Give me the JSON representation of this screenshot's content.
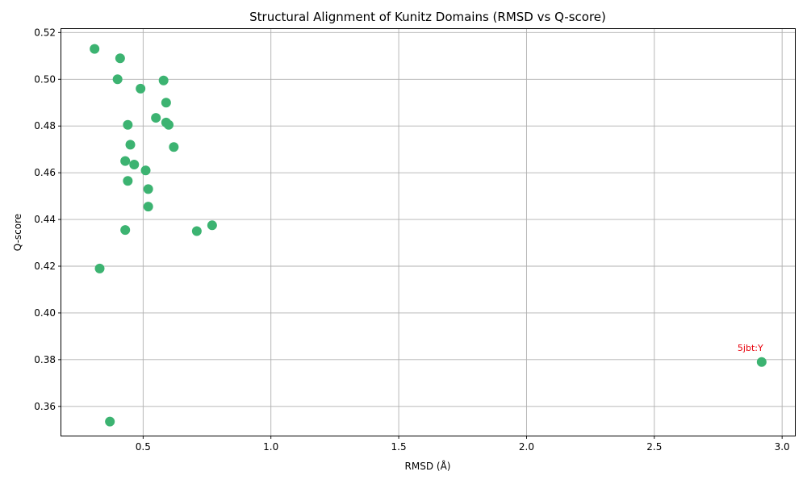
{
  "chart_data": {
    "type": "scatter",
    "title": "Structural Alignment of Kunitz Domains (RMSD vs Q-score)",
    "xlabel": "RMSD (Å)",
    "ylabel": "Q-score",
    "xlim": [
      0.18,
      3.05
    ],
    "ylim": [
      0.3475,
      0.5215
    ],
    "xticks": [
      0.5,
      1.0,
      1.5,
      2.0,
      2.5,
      3.0
    ],
    "xtick_labels": [
      "0.5",
      "1.0",
      "1.5",
      "2.0",
      "2.5",
      "3.0"
    ],
    "yticks": [
      0.36,
      0.38,
      0.4,
      0.42,
      0.44,
      0.46,
      0.48,
      0.5,
      0.52
    ],
    "ytick_labels": [
      "0.36",
      "0.38",
      "0.40",
      "0.42",
      "0.44",
      "0.46",
      "0.48",
      "0.50",
      "0.52"
    ],
    "grid": true,
    "marker_color": "#3cb371",
    "annotation_color": "#e8000b",
    "points": [
      {
        "x": 0.31,
        "y": 0.513
      },
      {
        "x": 0.41,
        "y": 0.509
      },
      {
        "x": 0.4,
        "y": 0.5
      },
      {
        "x": 0.58,
        "y": 0.4995
      },
      {
        "x": 0.49,
        "y": 0.496
      },
      {
        "x": 0.59,
        "y": 0.49
      },
      {
        "x": 0.55,
        "y": 0.4835
      },
      {
        "x": 0.59,
        "y": 0.4815
      },
      {
        "x": 0.6,
        "y": 0.4805
      },
      {
        "x": 0.44,
        "y": 0.4805
      },
      {
        "x": 0.45,
        "y": 0.472
      },
      {
        "x": 0.62,
        "y": 0.471
      },
      {
        "x": 0.43,
        "y": 0.465
      },
      {
        "x": 0.465,
        "y": 0.4635
      },
      {
        "x": 0.51,
        "y": 0.461
      },
      {
        "x": 0.44,
        "y": 0.4565
      },
      {
        "x": 0.52,
        "y": 0.453
      },
      {
        "x": 0.52,
        "y": 0.4455
      },
      {
        "x": 0.77,
        "y": 0.4375
      },
      {
        "x": 0.43,
        "y": 0.4355
      },
      {
        "x": 0.71,
        "y": 0.435
      },
      {
        "x": 0.33,
        "y": 0.419
      },
      {
        "x": 2.92,
        "y": 0.379,
        "label": "5jbt:Y"
      },
      {
        "x": 0.37,
        "y": 0.3535
      }
    ]
  }
}
